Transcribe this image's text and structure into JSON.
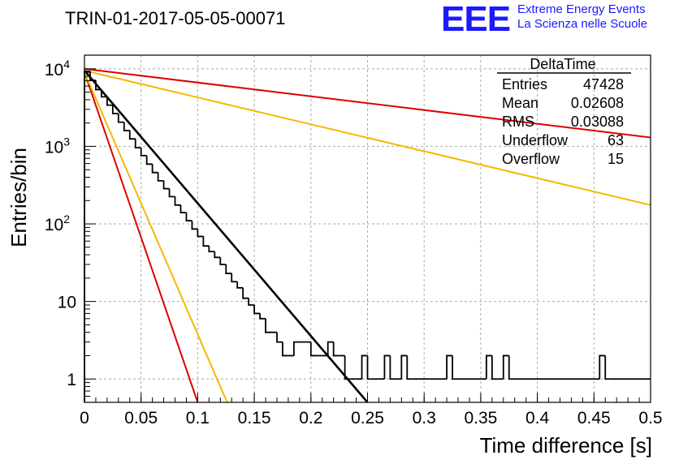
{
  "run_title": "TRIN-01-2017-05-05-00071",
  "logo": {
    "mark": "EEE",
    "line1": "Extreme Energy Events",
    "line2": "La Scienza nelle Scuole",
    "color": "#1a1aff"
  },
  "stats": {
    "title": "DeltaTime",
    "rows": [
      {
        "label": "Entries",
        "value": "47428"
      },
      {
        "label": "Mean",
        "value": "0.02608"
      },
      {
        "label": "RMS",
        "value": "0.03088"
      },
      {
        "label": "Underflow",
        "value": "63"
      },
      {
        "label": "Overflow",
        "value": "15"
      }
    ]
  },
  "chart_data": {
    "type": "histogram",
    "xlabel": "Time difference [s]",
    "ylabel": "Entries/bin",
    "xlim": [
      0,
      0.5
    ],
    "ylim": [
      0.5,
      15000
    ],
    "y_scale": "log",
    "grid": true,
    "x_ticks": [
      {
        "v": 0,
        "label": "0"
      },
      {
        "v": 0.05,
        "label": "0.05"
      },
      {
        "v": 0.1,
        "label": "0.1"
      },
      {
        "v": 0.15,
        "label": "0.15"
      },
      {
        "v": 0.2,
        "label": "0.2"
      },
      {
        "v": 0.25,
        "label": "0.25"
      },
      {
        "v": 0.3,
        "label": "0.3"
      },
      {
        "v": 0.35,
        "label": "0.35"
      },
      {
        "v": 0.4,
        "label": "0.4"
      },
      {
        "v": 0.45,
        "label": "0.45"
      },
      {
        "v": 0.5,
        "label": "0.5"
      }
    ],
    "y_ticks": [
      {
        "v": 1,
        "base": "1",
        "exp": ""
      },
      {
        "v": 10,
        "base": "10",
        "exp": ""
      },
      {
        "v": 100,
        "base": "10",
        "exp": "2"
      },
      {
        "v": 1000,
        "base": "10",
        "exp": "3"
      },
      {
        "v": 10000,
        "base": "10",
        "exp": "4"
      }
    ],
    "histogram": {
      "bin_width": 0.005,
      "color": "#000000",
      "counts": [
        9300,
        7100,
        5400,
        4350,
        3400,
        2650,
        2050,
        1600,
        1250,
        960,
        760,
        590,
        460,
        360,
        285,
        225,
        175,
        140,
        110,
        86,
        69,
        52,
        44,
        37,
        30,
        23,
        18,
        15,
        11,
        9,
        7,
        6,
        4,
        4,
        3,
        2,
        2,
        3,
        3,
        3,
        2,
        2,
        2,
        3,
        2,
        2,
        1,
        1,
        1,
        2,
        1,
        1,
        1,
        2,
        1,
        1,
        2,
        1,
        1,
        1,
        1,
        1,
        1,
        1,
        2,
        1,
        1,
        1,
        1,
        1,
        1,
        2,
        1,
        1,
        2,
        1,
        1,
        1,
        1,
        1,
        1,
        1,
        1,
        1,
        1,
        1,
        1,
        1,
        1,
        1,
        1,
        2,
        1,
        1,
        1,
        1,
        1,
        1,
        1,
        1
      ]
    },
    "fits": [
      {
        "type": "exponential",
        "color": "#000000",
        "points": [
          [
            0,
            9500
          ],
          [
            0.25,
            0.5
          ]
        ]
      },
      {
        "type": "exponential",
        "color": "#dd0000",
        "points": [
          [
            0,
            9000
          ],
          [
            0.1,
            0.5
          ]
        ]
      },
      {
        "type": "exponential",
        "color": "#f5b800",
        "points": [
          [
            0,
            9000
          ],
          [
            0.126,
            0.5
          ]
        ]
      },
      {
        "type": "exponential",
        "color": "#dd0000",
        "points": [
          [
            0,
            10000
          ],
          [
            0.5,
            1300
          ]
        ]
      },
      {
        "type": "exponential",
        "color": "#f5b800",
        "points": [
          [
            0,
            9500
          ],
          [
            0.5,
            175
          ]
        ]
      }
    ]
  }
}
